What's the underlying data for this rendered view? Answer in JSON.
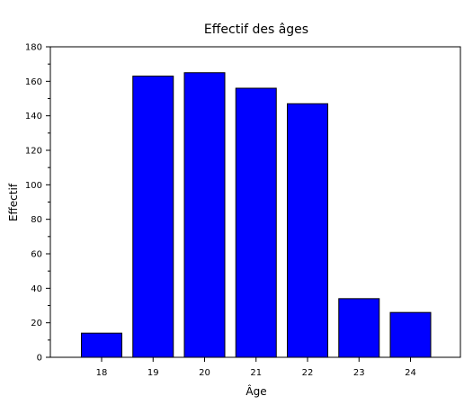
{
  "chart_data": {
    "type": "bar",
    "title": "Effectif des âges",
    "xlabel": "Âge",
    "ylabel": "Effectif",
    "categories": [
      "18",
      "19",
      "20",
      "21",
      "22",
      "23",
      "24"
    ],
    "values": [
      14,
      163,
      165,
      156,
      147,
      34,
      26
    ],
    "ylim": [
      0,
      180
    ],
    "yticks": [
      "0",
      "20",
      "40",
      "60",
      "80",
      "100",
      "120",
      "140",
      "160",
      "180"
    ],
    "grid": false,
    "legend": "none",
    "colors": {
      "bar_fill": "#0000ff",
      "bar_stroke": "#000000",
      "axis": "#000000",
      "background": "#ffffff"
    }
  }
}
